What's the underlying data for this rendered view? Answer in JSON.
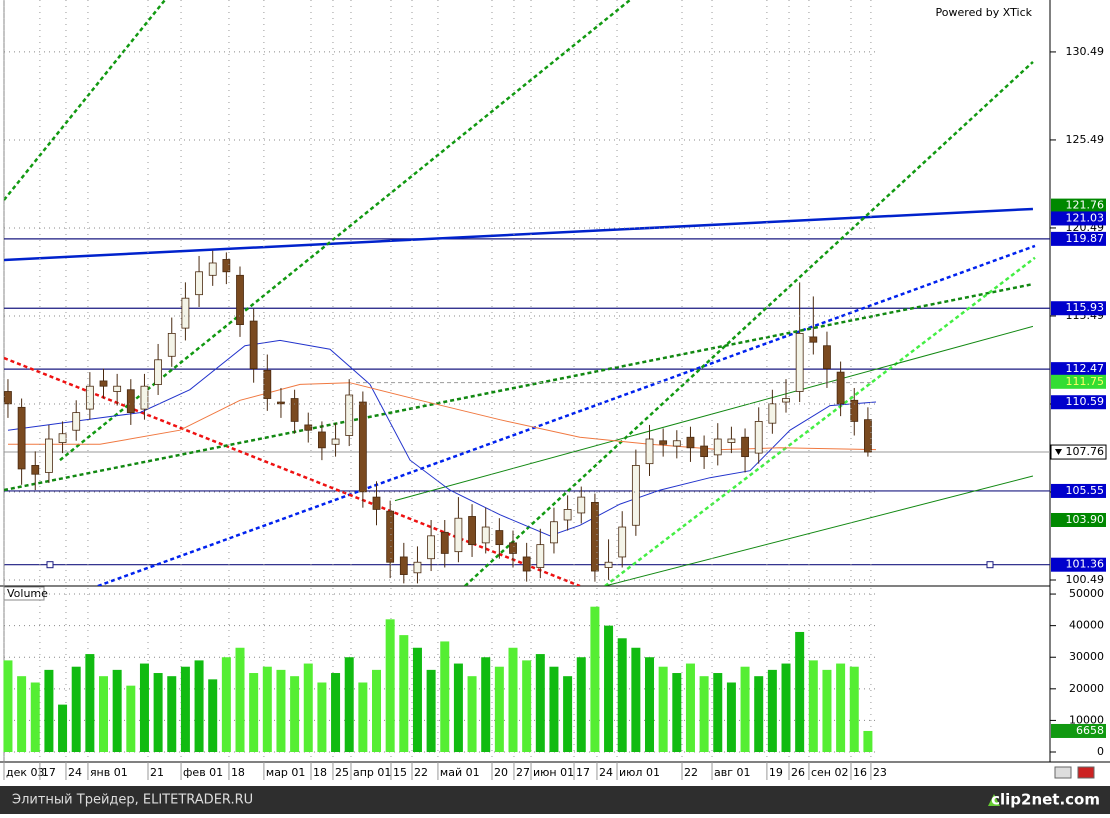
{
  "watermark": "Powered by XTick",
  "footer": {
    "left": "Элитный Трейдер, ELITETRADER.RU",
    "right": "clip2net.com"
  },
  "chart_data": [
    {
      "type": "candlestick",
      "xlim": [
        -0.29,
        76.34
      ],
      "ylim": [
        100.15,
        133.44
      ],
      "yticks": [
        100.49,
        105.49,
        110.49,
        115.49,
        120.49,
        125.49,
        130.49
      ],
      "grid": true,
      "up_color": "#f4f4e8",
      "down_color": "#7a4a20",
      "wick_color": "#4a2a10",
      "open": [
        111.2,
        110.3,
        107,
        106.6,
        108.3,
        109,
        110.2,
        111.8,
        111.2,
        111.3,
        110.2,
        111.6,
        113.2,
        114.8,
        116.7,
        117.8,
        118.7,
        117.8,
        115.2,
        112.4,
        110.6,
        110.8,
        109.3,
        108.9,
        108.2,
        108.7,
        110.6,
        105.2,
        104.4,
        101.8,
        100.9,
        101.7,
        103.2,
        102.1,
        104.1,
        102.6,
        103.3,
        102.6,
        101.8,
        101.2,
        102.6,
        103.9,
        104.3,
        104.9,
        101.2,
        101.8,
        103.6,
        107.1,
        108.4,
        108.1,
        108.6,
        108.1,
        107.6,
        108.3,
        108.6,
        107.7,
        109.4,
        110.6,
        111.2,
        114.3,
        113.8,
        112.3,
        110.7,
        109.6
      ],
      "high": [
        111.9,
        110.8,
        107.8,
        109.3,
        109.5,
        110.7,
        112.3,
        112.5,
        112.2,
        111.9,
        112.2,
        113.9,
        115.4,
        117.4,
        118.9,
        119.2,
        119.1,
        118.3,
        115.9,
        113.3,
        111.4,
        111.3,
        110,
        109.5,
        109.4,
        111.9,
        111.2,
        106.1,
        105,
        102.6,
        102.4,
        103.9,
        103.9,
        105.2,
        104.8,
        104.6,
        104,
        103.3,
        102.6,
        103.4,
        104.6,
        105.3,
        105.8,
        105.4,
        102.8,
        104.4,
        107.9,
        109.3,
        109.1,
        109,
        109.2,
        108.7,
        109.4,
        109.2,
        109.1,
        110.3,
        111.3,
        111.9,
        117.4,
        116.6,
        114.6,
        112.9,
        111.4,
        110.3
      ],
      "low": [
        109.7,
        105.9,
        105.6,
        106,
        107.7,
        108.4,
        109.6,
        110.8,
        110.4,
        109.3,
        109.6,
        111,
        112.6,
        114.1,
        116,
        117.2,
        117.3,
        114.3,
        111.7,
        110.1,
        109.7,
        108.8,
        108.3,
        107.3,
        107.5,
        108.1,
        104.6,
        103.6,
        100.6,
        100.3,
        100.3,
        101,
        101.2,
        101.5,
        101.8,
        102,
        101.7,
        101.2,
        100.4,
        100.6,
        102,
        103.3,
        103.7,
        100.4,
        100.5,
        101.2,
        103,
        106.4,
        107.5,
        107.4,
        107.2,
        106.8,
        107,
        107.7,
        106.6,
        107.1,
        108.8,
        110,
        110.6,
        113.3,
        111.4,
        109.8,
        108.7,
        107.5
      ],
      "close": [
        110.5,
        106.8,
        106.5,
        108.5,
        108.8,
        110,
        111.5,
        111.5,
        111.5,
        110,
        111.5,
        113,
        114.5,
        116.5,
        118,
        118.5,
        118,
        115,
        112.5,
        110.8,
        110.5,
        109.5,
        109,
        108,
        108.5,
        111,
        105.5,
        104.5,
        101.5,
        100.8,
        101.5,
        103,
        102,
        104,
        102.5,
        103.5,
        102.5,
        102,
        101,
        102.5,
        103.8,
        104.5,
        105.2,
        101,
        101.5,
        103.5,
        107,
        108.5,
        108.2,
        108.4,
        108,
        107.5,
        108.5,
        108.5,
        107.5,
        109.5,
        110.5,
        110.8,
        114.5,
        114,
        112.5,
        110.5,
        109.5,
        107.76
      ],
      "series": [
        {
          "color": "#2233cc",
          "x": [
            0,
            6.74,
            9.67,
            13.33,
            17.36,
            19.93,
            23.59,
            26.52,
            29.45,
            32.38,
            36.04,
            39.71,
            41.9,
            44.84,
            47.77,
            51.43,
            54.36,
            57.29,
            60.22,
            63.59
          ],
          "values": [
            109,
            109.7,
            110,
            111.3,
            113.8,
            114.1,
            113.6,
            111.6,
            107.3,
            105.6,
            104.2,
            103,
            103.6,
            104.8,
            105.6,
            106.3,
            106.7,
            109,
            110.4,
            110.6
          ]
        },
        {
          "color": "#f07840",
          "x": [
            0,
            6.74,
            12.6,
            17,
            21.4,
            25.05,
            30.2,
            36.04,
            41.9,
            47.03,
            52.2,
            56.56,
            63.59
          ],
          "values": [
            108.2,
            108.2,
            109,
            110.7,
            111.6,
            111.7,
            110.7,
            109.6,
            108.6,
            108.2,
            107.9,
            108,
            107.9
          ]
        }
      ],
      "trendlines": [
        {
          "x": [
            -0.29,
            75.09
          ],
          "values": [
            118.67,
            121.57
          ],
          "color": "#0022cc",
          "dash": false,
          "width": 2.5
        },
        {
          "x": [
            6.59,
            75.24
          ],
          "values": [
            100.15,
            119.47
          ],
          "color": "#0022ee",
          "dash": true,
          "width": 2.5
        },
        {
          "x": [
            -0.29,
            41.9
          ],
          "values": [
            113.1,
            100.15
          ],
          "color": "#ee1111",
          "dash": true,
          "width": 2.5
        },
        {
          "x": [
            -0.29,
            75.09
          ],
          "values": [
            105.6,
            117.3
          ],
          "color": "#118811",
          "dash": true,
          "width": 2.5
        },
        {
          "x": [
            -0.29,
            11.5
          ],
          "values": [
            122.08,
            133.44
          ],
          "color": "#119911",
          "dash": true,
          "width": 2.5
        },
        {
          "x": [
            3.81,
            45.57
          ],
          "values": [
            107.3,
            133.44
          ],
          "color": "#119911",
          "dash": true,
          "width": 2.5
        },
        {
          "x": [
            33.48,
            75.09
          ],
          "values": [
            100.15,
            129.92
          ],
          "color": "#119911",
          "dash": true,
          "width": 2.5
        },
        {
          "x": [
            43.74,
            75.24
          ],
          "values": [
            100.15,
            118.8
          ],
          "color": "#44ee44",
          "dash": true,
          "width": 2.5
        },
        {
          "x": [
            28.35,
            75.09
          ],
          "values": [
            105,
            114.9
          ],
          "color": "#118811",
          "dash": false,
          "width": 1
        },
        {
          "x": [
            43.74,
            75.09
          ],
          "values": [
            100.15,
            106.4
          ],
          "color": "#118811",
          "dash": false,
          "width": 1
        },
        {
          "x": [
            25.5,
            63.2
          ],
          "values": [
            111.7,
            111.7
          ],
          "color": "#999999",
          "dash": true,
          "width": 1
        }
      ],
      "markers": [
        {
          "value": 121.76,
          "bg": "#008800",
          "fg": "#ffffff"
        },
        {
          "value": 121.03,
          "bg": "#0000cc",
          "fg": "#ffffff"
        },
        {
          "value": 119.87,
          "bg": "#0000cc",
          "fg": "#ffffff",
          "line": "#1a1a80"
        },
        {
          "value": 115.93,
          "bg": "#0000cc",
          "fg": "#ffffff",
          "line": "#1a1a80"
        },
        {
          "value": 112.47,
          "bg": "#0000cc",
          "fg": "#ffffff",
          "line": "#1a1a80"
        },
        {
          "value": 111.75,
          "bg": "#33dd33",
          "fg": "#ffff66"
        },
        {
          "value": 110.59,
          "bg": "#0000cc",
          "fg": "#ffffff"
        },
        {
          "value": 105.55,
          "bg": "#0000cc",
          "fg": "#ffffff",
          "line": "#1a1a80"
        },
        {
          "value": 103.9,
          "label": "103.90",
          "bg": "#008800",
          "fg": "#ffffff"
        },
        {
          "value": 101.36,
          "bg": "#0000cc",
          "fg": "#ffffff",
          "line": "#1a1a80"
        }
      ]
    },
    {
      "type": "bar",
      "title": "Volume",
      "ylim": [
        0,
        51600
      ],
      "yticks": [
        0,
        10000,
        20000,
        30000,
        40000,
        50000
      ],
      "grid": true,
      "up_color": "#11bb11",
      "down_color": "#55ee33",
      "last_bg": "#119911",
      "values": [
        29000,
        24000,
        22000,
        26000,
        15000,
        27000,
        31000,
        24000,
        26000,
        21000,
        28000,
        25000,
        24000,
        27000,
        29000,
        23000,
        30000,
        33000,
        25000,
        27000,
        26000,
        24000,
        28000,
        22000,
        25000,
        30000,
        22000,
        26000,
        42000,
        37000,
        33000,
        26000,
        35000,
        28000,
        24000,
        30000,
        27000,
        33000,
        29000,
        31000,
        27000,
        24000,
        30000,
        46000,
        40000,
        36000,
        33000,
        30000,
        27000,
        25000,
        28000,
        24000,
        25000,
        22000,
        27000,
        24000,
        26000,
        28000,
        38000,
        29000,
        26000,
        28000,
        27000,
        6658
      ],
      "xticks": [
        {
          "value": -0.29,
          "label": "дек 03"
        },
        {
          "value": 2.34,
          "label": "17"
        },
        {
          "value": 4.25,
          "label": "24"
        },
        {
          "value": 5.86,
          "label": "янв 01"
        },
        {
          "value": 10.26,
          "label": "21"
        },
        {
          "value": 12.68,
          "label": "фев 01"
        },
        {
          "value": 16.19,
          "label": "18"
        },
        {
          "value": 18.75,
          "label": "мар 01"
        },
        {
          "value": 22.2,
          "label": "18"
        },
        {
          "value": 23.81,
          "label": "25"
        },
        {
          "value": 25.13,
          "label": "апр 01"
        },
        {
          "value": 28.06,
          "label": "15"
        },
        {
          "value": 29.6,
          "label": "22"
        },
        {
          "value": 31.5,
          "label": "май 01"
        },
        {
          "value": 35.46,
          "label": "20"
        },
        {
          "value": 37.07,
          "label": "27"
        },
        {
          "value": 38.32,
          "label": "июн 01"
        },
        {
          "value": 41.47,
          "label": "17"
        },
        {
          "value": 43.15,
          "label": "24"
        },
        {
          "value": 44.62,
          "label": "июл 01"
        },
        {
          "value": 49.38,
          "label": "22"
        },
        {
          "value": 51.58,
          "label": "авг 01"
        },
        {
          "value": 55.6,
          "label": "19"
        },
        {
          "value": 57.22,
          "label": "26"
        },
        {
          "value": 58.68,
          "label": "сен 02"
        },
        {
          "value": 61.76,
          "label": "16"
        },
        {
          "value": 63.22,
          "label": "23"
        }
      ]
    }
  ]
}
